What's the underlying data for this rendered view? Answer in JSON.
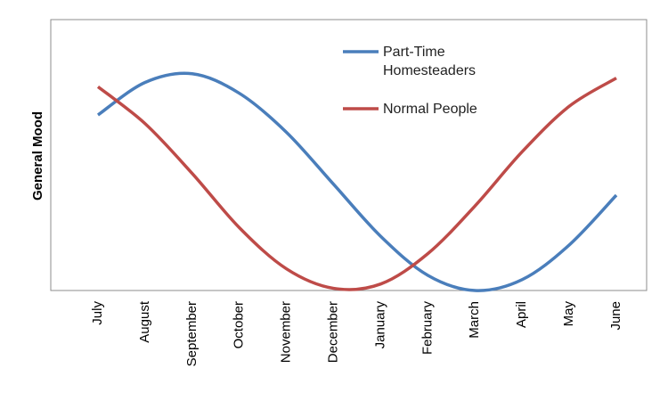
{
  "chart_data": {
    "type": "line",
    "y_label": "General Mood",
    "categories": [
      "July",
      "August",
      "September",
      "October",
      "November",
      "December",
      "January",
      "February",
      "March",
      "April",
      "May",
      "June"
    ],
    "series": [
      {
        "name": "Part-Time Homesteaders",
        "color": "#4a7ebb",
        "values": [
          0.81,
          0.96,
          1.0,
          0.91,
          0.73,
          0.49,
          0.25,
          0.07,
          0.0,
          0.05,
          0.21,
          0.44
        ]
      },
      {
        "name": "Normal People",
        "color": "#be4b48",
        "values": [
          0.94,
          0.77,
          0.54,
          0.29,
          0.1,
          0.01,
          0.03,
          0.17,
          0.39,
          0.64,
          0.85,
          0.98
        ]
      }
    ],
    "ylim": [
      0,
      1.25
    ],
    "legend": "top-right"
  }
}
